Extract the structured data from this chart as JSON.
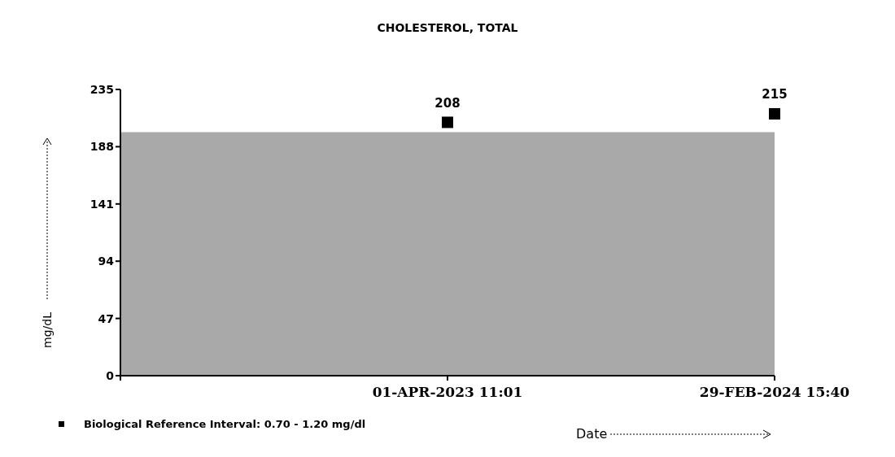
{
  "chart_data": {
    "type": "scatter",
    "title": "CHOLESTEROL, TOTAL",
    "xlabel": "Date",
    "ylabel": "mg/dL",
    "categories": [
      null,
      "01-APR-2023 11:01",
      "29-FEB-2024 15:40"
    ],
    "series": [
      {
        "color": "#000000",
        "values": [
          null,
          208,
          215
        ]
      }
    ],
    "ylim": [
      0,
      235
    ],
    "yticks": [
      0,
      47,
      94,
      141,
      188,
      235
    ],
    "bands": [
      {
        "axis": "y",
        "from": 0,
        "to": 200,
        "color": "#a9a9a9"
      }
    ],
    "annotations": [
      "Biological Reference Interval: 0.70 - 1.20 mg/dl"
    ],
    "marker": "square",
    "data_labels": true,
    "grid": false,
    "legend": false
  }
}
